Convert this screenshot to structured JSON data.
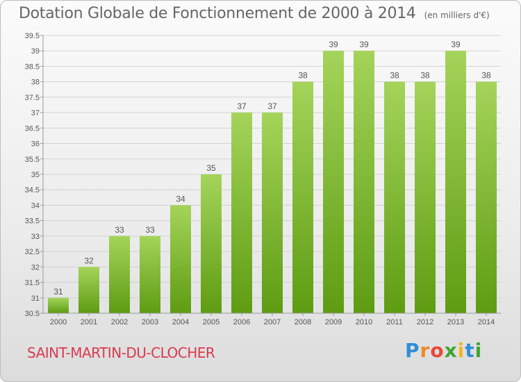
{
  "header": {
    "title": "Dotation Globale de Fonctionnement de 2000 à 2014",
    "unit": "(en milliers d'€)"
  },
  "footer": {
    "commune": "SAINT-MARTIN-DU-CLOCHER",
    "logo_text": "Proxiti"
  },
  "colors": {
    "bar_light": "#a4d45a",
    "bar_dark": "#5e9c12",
    "grid": "#d2d2d2",
    "commune_text": "#d93a4d"
  },
  "chart_data": {
    "type": "bar",
    "title": "Dotation Globale de Fonctionnement de 2000 à 2014",
    "subtitle": "(en milliers d'€)",
    "xlabel": "",
    "ylabel": "",
    "categories": [
      "2000",
      "2001",
      "2002",
      "2003",
      "2004",
      "2005",
      "2006",
      "2007",
      "2008",
      "2009",
      "2010",
      "2011",
      "2012",
      "2013",
      "2014"
    ],
    "values": [
      31,
      32,
      33,
      33,
      34,
      35,
      37,
      37,
      38,
      39,
      39,
      38,
      38,
      39,
      38
    ],
    "data_labels": [
      "31",
      "32",
      "33",
      "33",
      "34",
      "35",
      "37",
      "37",
      "38",
      "39",
      "39",
      "38",
      "38",
      "39",
      "38"
    ],
    "ylim": [
      30.5,
      39.5
    ],
    "yticks": [
      "30.5",
      "31",
      "31.5",
      "32",
      "32.5",
      "33",
      "33.5",
      "34",
      "34.5",
      "35",
      "35.5",
      "36",
      "36.5",
      "37",
      "37.5",
      "38",
      "38.5",
      "39",
      "39.5"
    ],
    "grid": true,
    "legend": "none"
  }
}
